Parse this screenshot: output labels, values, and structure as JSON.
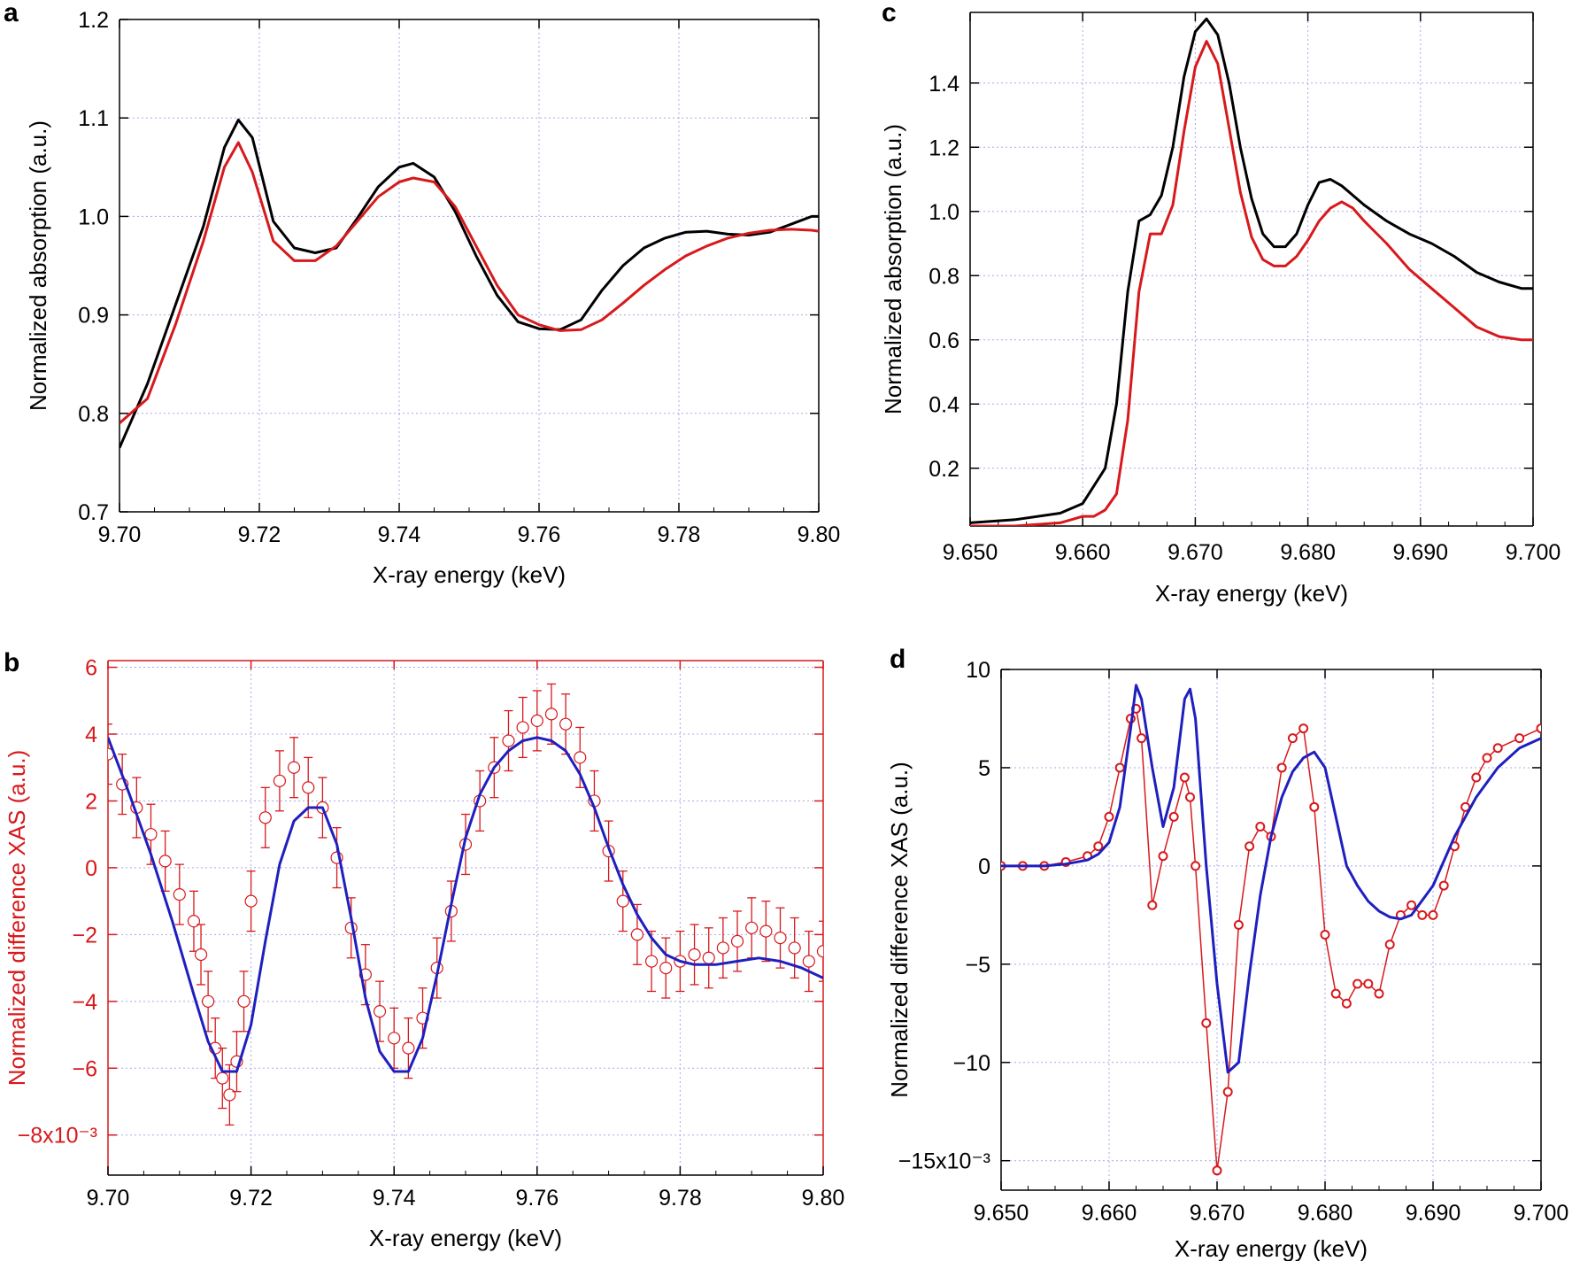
{
  "chart_data": [
    {
      "panel": "a",
      "type": "line",
      "xlabel": "X-ray energy (keV)",
      "ylabel": "Normalized absorption (a.u.)",
      "xlim": [
        9.7,
        9.8
      ],
      "ylim": [
        0.7,
        1.2
      ],
      "xticks": [
        "9.70",
        "9.72",
        "9.74",
        "9.76",
        "9.78",
        "9.80"
      ],
      "yticks": [
        "0.7",
        "0.8",
        "0.9",
        "1.0",
        "1.1",
        "1.2"
      ],
      "grid": true,
      "series": [
        {
          "name": "black",
          "color": "#000000",
          "x": [
            9.7,
            9.704,
            9.708,
            9.712,
            9.715,
            9.717,
            9.719,
            9.722,
            9.725,
            9.728,
            9.731,
            9.734,
            9.737,
            9.74,
            9.742,
            9.745,
            9.748,
            9.751,
            9.754,
            9.757,
            9.76,
            9.763,
            9.766,
            9.769,
            9.772,
            9.775,
            9.778,
            9.781,
            9.784,
            9.787,
            9.79,
            9.793,
            9.796,
            9.799,
            9.8
          ],
          "y": [
            0.765,
            0.83,
            0.91,
            0.99,
            1.07,
            1.098,
            1.08,
            0.995,
            0.968,
            0.963,
            0.968,
            0.998,
            1.03,
            1.05,
            1.054,
            1.04,
            1.005,
            0.96,
            0.92,
            0.893,
            0.886,
            0.885,
            0.895,
            0.925,
            0.95,
            0.968,
            0.978,
            0.984,
            0.985,
            0.982,
            0.981,
            0.984,
            0.992,
            1.0,
            1.0
          ]
        },
        {
          "name": "red",
          "color": "#d7191c",
          "x": [
            9.7,
            9.704,
            9.708,
            9.712,
            9.715,
            9.717,
            9.719,
            9.722,
            9.725,
            9.728,
            9.731,
            9.734,
            9.737,
            9.74,
            9.742,
            9.745,
            9.748,
            9.751,
            9.754,
            9.757,
            9.76,
            9.763,
            9.766,
            9.769,
            9.772,
            9.775,
            9.778,
            9.781,
            9.784,
            9.787,
            9.79,
            9.793,
            9.796,
            9.799,
            9.8
          ],
          "y": [
            0.79,
            0.815,
            0.89,
            0.975,
            1.05,
            1.075,
            1.045,
            0.975,
            0.955,
            0.955,
            0.97,
            0.995,
            1.02,
            1.035,
            1.039,
            1.035,
            1.01,
            0.97,
            0.93,
            0.9,
            0.89,
            0.884,
            0.885,
            0.895,
            0.912,
            0.93,
            0.946,
            0.96,
            0.97,
            0.978,
            0.983,
            0.986,
            0.987,
            0.986,
            0.985
          ]
        }
      ]
    },
    {
      "panel": "b",
      "type": "scatter",
      "xlabel": "X-ray energy (keV)",
      "ylabel": "Normalized difference XAS (a.u.)",
      "xlim": [
        9.7,
        9.8
      ],
      "ylim": [
        -9.2,
        6.2
      ],
      "xticks": [
        "9.70",
        "9.72",
        "9.74",
        "9.76",
        "9.78",
        "9.80"
      ],
      "yticks": [
        "6",
        "4",
        "2",
        "0",
        "−2",
        "−4",
        "−6",
        "−8x10⁻³"
      ],
      "ytick_values": [
        6,
        4,
        2,
        0,
        -2,
        -4,
        -6,
        -8
      ],
      "grid": true,
      "axis_color": "#d7191c",
      "error_bar": 0.9,
      "points": {
        "name": "data",
        "color": "#d7191c",
        "x": [
          9.7,
          9.702,
          9.704,
          9.706,
          9.708,
          9.71,
          9.712,
          9.713,
          9.714,
          9.715,
          9.716,
          9.717,
          9.718,
          9.719,
          9.72,
          9.722,
          9.724,
          9.726,
          9.728,
          9.73,
          9.732,
          9.734,
          9.736,
          9.738,
          9.74,
          9.742,
          9.744,
          9.746,
          9.748,
          9.75,
          9.752,
          9.754,
          9.756,
          9.758,
          9.76,
          9.762,
          9.764,
          9.766,
          9.768,
          9.77,
          9.772,
          9.774,
          9.776,
          9.778,
          9.78,
          9.782,
          9.784,
          9.786,
          9.788,
          9.79,
          9.792,
          9.794,
          9.796,
          9.798,
          9.8
        ],
        "y": [
          3.4,
          2.5,
          1.8,
          1.0,
          0.2,
          -0.8,
          -1.6,
          -2.6,
          -4.0,
          -5.4,
          -6.3,
          -6.8,
          -5.8,
          -4.0,
          -1.0,
          1.5,
          2.6,
          3.0,
          2.4,
          1.8,
          0.3,
          -1.8,
          -3.2,
          -4.3,
          -5.1,
          -5.4,
          -4.5,
          -3.0,
          -1.3,
          0.7,
          2.0,
          3.0,
          3.8,
          4.2,
          4.4,
          4.6,
          4.3,
          3.3,
          2.0,
          0.5,
          -1.0,
          -2.0,
          -2.8,
          -3.0,
          -2.8,
          -2.6,
          -2.7,
          -2.4,
          -2.2,
          -1.8,
          -1.9,
          -2.1,
          -2.4,
          -2.8,
          -2.5
        ]
      },
      "series": [
        {
          "name": "fit",
          "color": "#1f1fbf",
          "x": [
            9.7,
            9.703,
            9.706,
            9.709,
            9.712,
            9.714,
            9.716,
            9.718,
            9.72,
            9.722,
            9.724,
            9.726,
            9.728,
            9.73,
            9.732,
            9.734,
            9.736,
            9.738,
            9.74,
            9.742,
            9.744,
            9.746,
            9.748,
            9.75,
            9.752,
            9.754,
            9.756,
            9.758,
            9.76,
            9.762,
            9.764,
            9.766,
            9.768,
            9.77,
            9.772,
            9.774,
            9.776,
            9.778,
            9.78,
            9.782,
            9.785,
            9.788,
            9.791,
            9.794,
            9.797,
            9.8
          ],
          "y": [
            3.9,
            2.2,
            0.4,
            -1.6,
            -3.8,
            -5.2,
            -6.1,
            -6.1,
            -4.7,
            -2.2,
            0.1,
            1.4,
            1.8,
            1.8,
            0.7,
            -1.5,
            -3.9,
            -5.5,
            -6.1,
            -6.1,
            -5.1,
            -3.2,
            -1.1,
            0.9,
            2.2,
            3.0,
            3.5,
            3.8,
            3.9,
            3.8,
            3.5,
            2.8,
            1.8,
            0.6,
            -0.5,
            -1.4,
            -2.1,
            -2.6,
            -2.8,
            -2.9,
            -2.9,
            -2.8,
            -2.7,
            -2.8,
            -3.0,
            -3.3
          ]
        }
      ]
    },
    {
      "panel": "c",
      "type": "line",
      "xlabel": "X-ray energy (keV)",
      "ylabel": "Normalized absorption (a.u.)",
      "xlim": [
        9.65,
        9.7
      ],
      "ylim": [
        0.02,
        1.62
      ],
      "xticks": [
        "9.650",
        "9.660",
        "9.670",
        "9.680",
        "9.690",
        "9.700"
      ],
      "yticks": [
        "0.2",
        "0.4",
        "0.6",
        "0.8",
        "1.0",
        "1.2",
        "1.4"
      ],
      "ytick_values": [
        0.2,
        0.4,
        0.6,
        0.8,
        1.0,
        1.2,
        1.4
      ],
      "grid": true,
      "series": [
        {
          "name": "black",
          "color": "#000000",
          "x": [
            9.65,
            9.654,
            9.658,
            9.66,
            9.662,
            9.663,
            9.664,
            9.665,
            9.666,
            9.667,
            9.668,
            9.669,
            9.67,
            9.671,
            9.672,
            9.673,
            9.674,
            9.675,
            9.676,
            9.677,
            9.678,
            9.679,
            9.68,
            9.681,
            9.682,
            9.683,
            9.684,
            9.685,
            9.687,
            9.689,
            9.691,
            9.693,
            9.695,
            9.697,
            9.699,
            9.7
          ],
          "y": [
            0.03,
            0.04,
            0.06,
            0.09,
            0.2,
            0.4,
            0.75,
            0.97,
            0.99,
            1.05,
            1.2,
            1.42,
            1.56,
            1.6,
            1.55,
            1.4,
            1.2,
            1.04,
            0.93,
            0.89,
            0.89,
            0.93,
            1.02,
            1.09,
            1.1,
            1.08,
            1.05,
            1.02,
            0.97,
            0.93,
            0.9,
            0.86,
            0.81,
            0.78,
            0.76,
            0.76
          ]
        },
        {
          "name": "red",
          "color": "#d7191c",
          "x": [
            9.65,
            9.654,
            9.658,
            9.659,
            9.66,
            9.661,
            9.662,
            9.663,
            9.664,
            9.665,
            9.666,
            9.667,
            9.668,
            9.669,
            9.67,
            9.671,
            9.672,
            9.673,
            9.674,
            9.675,
            9.676,
            9.677,
            9.678,
            9.679,
            9.68,
            9.681,
            9.682,
            9.683,
            9.684,
            9.685,
            9.687,
            9.689,
            9.691,
            9.693,
            9.695,
            9.697,
            9.699,
            9.7
          ],
          "y": [
            0.02,
            0.02,
            0.03,
            0.04,
            0.05,
            0.05,
            0.07,
            0.12,
            0.35,
            0.75,
            0.93,
            0.93,
            1.02,
            1.25,
            1.45,
            1.53,
            1.46,
            1.26,
            1.06,
            0.92,
            0.85,
            0.83,
            0.83,
            0.86,
            0.91,
            0.97,
            1.01,
            1.03,
            1.01,
            0.97,
            0.9,
            0.82,
            0.76,
            0.7,
            0.64,
            0.61,
            0.6,
            0.6
          ]
        }
      ]
    },
    {
      "panel": "d",
      "type": "line",
      "xlabel": "X-ray energy (keV)",
      "ylabel": "Normalized difference XAS (a.u.)",
      "xlim": [
        9.65,
        9.7
      ],
      "ylim": [
        -16.5,
        10
      ],
      "xticks": [
        "9.650",
        "9.660",
        "9.670",
        "9.680",
        "9.690",
        "9.700"
      ],
      "yticks": [
        "10",
        "5",
        "0",
        "−5",
        "−10",
        "−15x10⁻³"
      ],
      "ytick_values": [
        10,
        5,
        0,
        -5,
        -10,
        -15
      ],
      "grid": true,
      "points": {
        "name": "data",
        "color": "#d7191c",
        "x": [
          9.65,
          9.652,
          9.654,
          9.656,
          9.658,
          9.659,
          9.66,
          9.661,
          9.662,
          9.6625,
          9.663,
          9.664,
          9.665,
          9.666,
          9.667,
          9.6675,
          9.668,
          9.669,
          9.67,
          9.671,
          9.672,
          9.673,
          9.674,
          9.675,
          9.676,
          9.677,
          9.678,
          9.679,
          9.68,
          9.681,
          9.682,
          9.683,
          9.684,
          9.685,
          9.686,
          9.687,
          9.688,
          9.689,
          9.69,
          9.691,
          9.692,
          9.693,
          9.694,
          9.695,
          9.696,
          9.698,
          9.7
        ],
        "y": [
          0,
          0,
          0,
          0.2,
          0.5,
          1.0,
          2.5,
          5.0,
          7.5,
          8.0,
          6.5,
          -2.0,
          0.5,
          2.5,
          4.5,
          3.5,
          0,
          -8.0,
          -15.5,
          -11.5,
          -3.0,
          1.0,
          2.0,
          1.5,
          5.0,
          6.5,
          7.0,
          3.0,
          -3.5,
          -6.5,
          -7.0,
          -6.0,
          -6.0,
          -6.5,
          -4.0,
          -2.5,
          -2.0,
          -2.5,
          -2.5,
          -1.0,
          1.0,
          3.0,
          4.5,
          5.5,
          6.0,
          6.5,
          7.0
        ]
      },
      "series": [
        {
          "name": "fit",
          "color": "#1f1fbf",
          "x": [
            9.65,
            9.654,
            9.656,
            9.658,
            9.659,
            9.66,
            9.661,
            9.662,
            9.6625,
            9.663,
            9.664,
            9.665,
            9.666,
            9.667,
            9.6675,
            9.668,
            9.669,
            9.67,
            9.671,
            9.672,
            9.673,
            9.674,
            9.675,
            9.676,
            9.677,
            9.678,
            9.679,
            9.68,
            9.681,
            9.682,
            9.683,
            9.684,
            9.685,
            9.686,
            9.687,
            9.688,
            9.69,
            9.692,
            9.694,
            9.696,
            9.698,
            9.7
          ],
          "y": [
            0,
            0,
            0.1,
            0.3,
            0.6,
            1.2,
            3.0,
            7.0,
            9.2,
            8.5,
            5.0,
            2.0,
            4.0,
            8.5,
            9.0,
            7.5,
            0,
            -6.0,
            -10.5,
            -10.0,
            -5.5,
            -1.5,
            1.5,
            3.5,
            4.8,
            5.5,
            5.8,
            5.0,
            2.5,
            0,
            -1.0,
            -1.8,
            -2.3,
            -2.6,
            -2.7,
            -2.5,
            -1.0,
            1.5,
            3.5,
            5.0,
            6.0,
            6.5
          ]
        }
      ]
    }
  ]
}
